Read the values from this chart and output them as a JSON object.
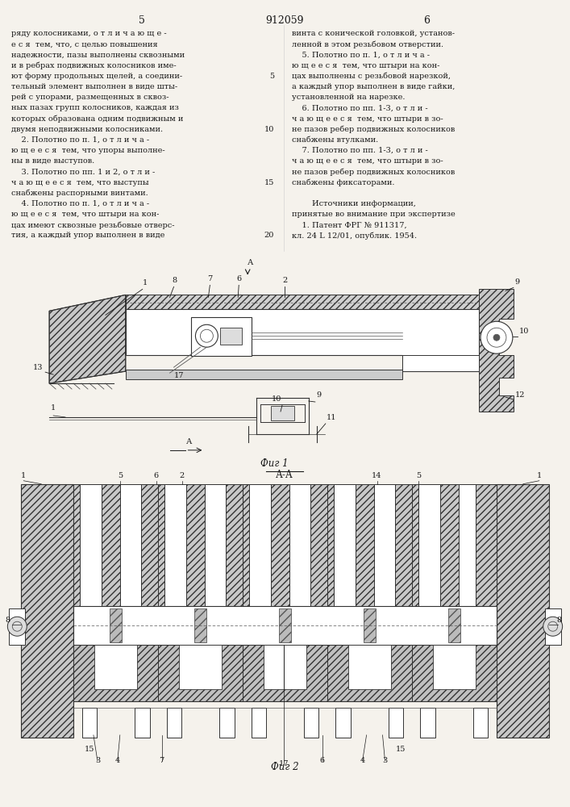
{
  "page_color": "#f5f2ec",
  "text_color": "#1a1a1a",
  "line_color": "#1a1a1a",
  "title": "912059",
  "page_num_left": "5",
  "page_num_right": "6",
  "left_col": [
    "ряду колосниками, о т л и ч а ю щ е -",
    "е с я  тем, что, с целью повышения",
    "надежности, пазы выполнены сквозными",
    "и в ребрах подвижных колосников име-",
    "ют форму продольных щелей, а соедини-",
    "тельный элемент выполнен в виде шты-",
    "рей с упорами, размещенных в сквоз-",
    "ных пазах групп колосников, каждая из",
    "которых образована одним подвижным и",
    "двумя неподвижными колосниками.",
    "    2. Полотно по п. 1, о т л и ч а -",
    "ю щ е е с я  тем, что упоры выполне-",
    "ны в виде выступов.",
    "    3. Полотно по пп. 1 и 2, о т л и -",
    "ч а ю щ е е с я  тем, что выступы",
    "снабжены распорными винтами.",
    "    4. Полотно по п. 1, о т л и ч а -",
    "ю щ е е с я  тем, что штыри на кон-",
    "цах имеют сквозные резьбовые отверс-",
    "тия, а каждый упор выполнен в виде"
  ],
  "left_col_nums": [
    null,
    null,
    null,
    null,
    "5",
    null,
    null,
    null,
    null,
    "10",
    null,
    null,
    null,
    null,
    "15",
    null,
    null,
    null,
    null,
    "20"
  ],
  "right_col": [
    "винта с конической головкой, установ-",
    "ленной в этом резьбовом отверстии.",
    "    5. Полотно по п. 1, о т л и ч а -",
    "ю щ е е с я  тем, что штыри на кон-",
    "цах выполнены с резьбовой нарезкой,",
    "а каждый упор выполнен в виде гайки,",
    "установленной на нарезке.",
    "    6. Полотно по пп. 1-3, о т л и -",
    "ч а ю щ е е с я  тем, что штыри в зо-",
    "не пазов ребер подвижных колосников",
    "снабжены втулками.",
    "    7. Полотно по пп. 1-3, о т л и -",
    "ч а ю щ е е с я  тем, что штыри в зо-",
    "не пазов ребер подвижных колосников",
    "снабжены фиксаторами.",
    "",
    "        Источники информации,",
    "принятые во внимание при экспертизе",
    "    1. Патент ФРГ № 911317,",
    "кл. 24 L 12/01, опублик. 1954."
  ],
  "fig1_caption": "Фиг 1",
  "fig2_caption": "Фиг 2",
  "section_label": "А-А"
}
